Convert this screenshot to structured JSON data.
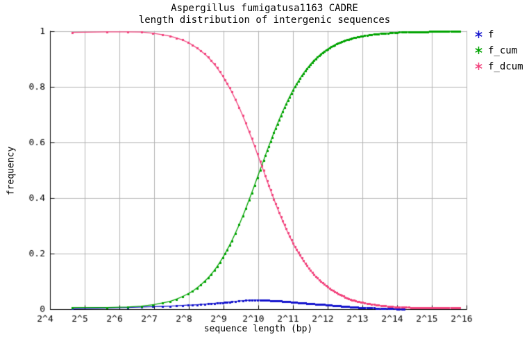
{
  "title": {
    "line1": "Aspergillus fumigatusa1163 CADRE",
    "line2": "length distribution of intergenic sequences"
  },
  "colors": {
    "f": "#1414cd",
    "f_cum": "#00a300",
    "f_dcum": "#f2437d",
    "grid": "#b3b3b3",
    "axis": "#000000",
    "background": "#ffffff"
  },
  "chart_data": {
    "type": "line",
    "title": "Aspergillus fumigatusa1163 CADRE — length distribution of intergenic sequences",
    "xlabel": "sequence length (bp)",
    "ylabel": "frequency",
    "x_scale": "log2",
    "xlim_log2": [
      4,
      16
    ],
    "ylim": [
      0,
      1
    ],
    "grid": true,
    "legend_position": "outside-top-right",
    "x_ticks": [
      "2^4",
      "2^5",
      "2^6",
      "2^7",
      "2^8",
      "2^9",
      "2^10",
      "2^11",
      "2^12",
      "2^13",
      "2^14",
      "2^15",
      "2^16"
    ],
    "x_tick_log2": [
      4,
      5,
      6,
      7,
      8,
      9,
      10,
      11,
      12,
      13,
      14,
      15,
      16
    ],
    "y_ticks": [
      "0",
      "0.2",
      "0.4",
      "0.6",
      "0.8",
      "1"
    ],
    "y_tick_values": [
      0,
      0.2,
      0.4,
      0.6,
      0.8,
      1
    ],
    "x_log2": [
      4.64,
      5.64,
      6.23,
      6.64,
      6.97,
      7.23,
      7.45,
      7.64,
      7.81,
      7.97,
      8.1,
      8.23,
      8.34,
      8.45,
      8.55,
      8.64,
      8.73,
      8.81,
      8.89,
      8.97,
      9.04,
      9.1,
      9.17,
      9.23,
      9.34,
      9.45,
      9.55,
      9.64,
      9.73,
      9.81,
      9.89,
      9.97,
      10.05,
      10.15,
      10.25,
      10.35,
      10.45,
      10.55,
      10.65,
      10.75,
      10.85,
      10.95,
      11.05,
      11.15,
      11.25,
      11.35,
      11.45,
      11.55,
      11.65,
      11.75,
      11.85,
      11.95,
      12.1,
      12.25,
      12.4,
      12.55,
      12.7,
      12.85,
      13.0,
      13.2,
      13.4,
      13.6,
      13.8,
      14.0,
      14.2,
      14.4,
      14.7,
      15.0,
      15.3,
      15.55,
      15.8
    ],
    "series": [
      {
        "name": "f",
        "color": "#1414cd",
        "values": [
          0.0015,
          0.004,
          0.006,
          0.008,
          0.009,
          0.01,
          0.011,
          0.012,
          0.0135,
          0.0145,
          0.015,
          0.016,
          0.017,
          0.018,
          0.019,
          0.02,
          0.021,
          0.022,
          0.0225,
          0.0235,
          0.0245,
          0.025,
          0.026,
          0.027,
          0.028,
          0.0295,
          0.0305,
          0.0315,
          0.032,
          0.0325,
          0.033,
          0.033,
          0.033,
          0.0325,
          0.032,
          0.031,
          0.0305,
          0.03,
          0.029,
          0.028,
          0.027,
          0.026,
          0.0245,
          0.0235,
          0.0225,
          0.0215,
          0.0205,
          0.0195,
          0.0185,
          0.018,
          0.017,
          0.016,
          0.014,
          0.0125,
          0.011,
          0.0095,
          0.008,
          0.0065,
          0.0055,
          0.0045,
          0.0035,
          0.0027,
          0.002,
          0.0012,
          0.001,
          null,
          null,
          null,
          null,
          null,
          null
        ]
      },
      {
        "name": "f_cum",
        "color": "#00a300",
        "values": [
          0.006,
          0.006,
          0.008,
          0.011,
          0.016,
          0.022,
          0.028,
          0.036,
          0.045,
          0.055,
          0.064,
          0.076,
          0.087,
          0.1,
          0.112,
          0.125,
          0.139,
          0.153,
          0.168,
          0.184,
          0.199,
          0.213,
          0.229,
          0.244,
          0.273,
          0.304,
          0.334,
          0.362,
          0.392,
          0.418,
          0.445,
          0.473,
          0.5,
          0.534,
          0.569,
          0.602,
          0.635,
          0.666,
          0.696,
          0.724,
          0.751,
          0.776,
          0.799,
          0.82,
          0.839,
          0.857,
          0.873,
          0.888,
          0.901,
          0.912,
          0.923,
          0.932,
          0.944,
          0.954,
          0.962,
          0.969,
          0.975,
          0.979,
          0.983,
          0.987,
          0.99,
          0.993,
          0.994,
          0.996,
          0.997,
          0.997,
          0.998,
          0.999,
          0.999,
          1.0,
          1.0
        ]
      },
      {
        "name": "f_dcum",
        "color": "#f2437d",
        "values": [
          0.996,
          0.998,
          0.998,
          0.997,
          0.993,
          0.988,
          0.983,
          0.976,
          0.969,
          0.96,
          0.951,
          0.94,
          0.93,
          0.919,
          0.907,
          0.895,
          0.882,
          0.869,
          0.855,
          0.84,
          0.826,
          0.812,
          0.797,
          0.783,
          0.755,
          0.726,
          0.697,
          0.67,
          0.64,
          0.615,
          0.588,
          0.56,
          0.533,
          0.499,
          0.463,
          0.429,
          0.396,
          0.364,
          0.333,
          0.304,
          0.276,
          0.25,
          0.226,
          0.204,
          0.184,
          0.165,
          0.148,
          0.132,
          0.118,
          0.106,
          0.094,
          0.084,
          0.07,
          0.059,
          0.049,
          0.041,
          0.033,
          0.028,
          0.024,
          0.019,
          0.015,
          0.012,
          0.01,
          0.008,
          0.007,
          0.006,
          0.005,
          0.005,
          0.0045,
          0.0045,
          0.0045
        ]
      }
    ]
  },
  "legend": {
    "items": [
      {
        "label": "f"
      },
      {
        "label": "f_cum"
      },
      {
        "label": "f_dcum"
      }
    ]
  }
}
